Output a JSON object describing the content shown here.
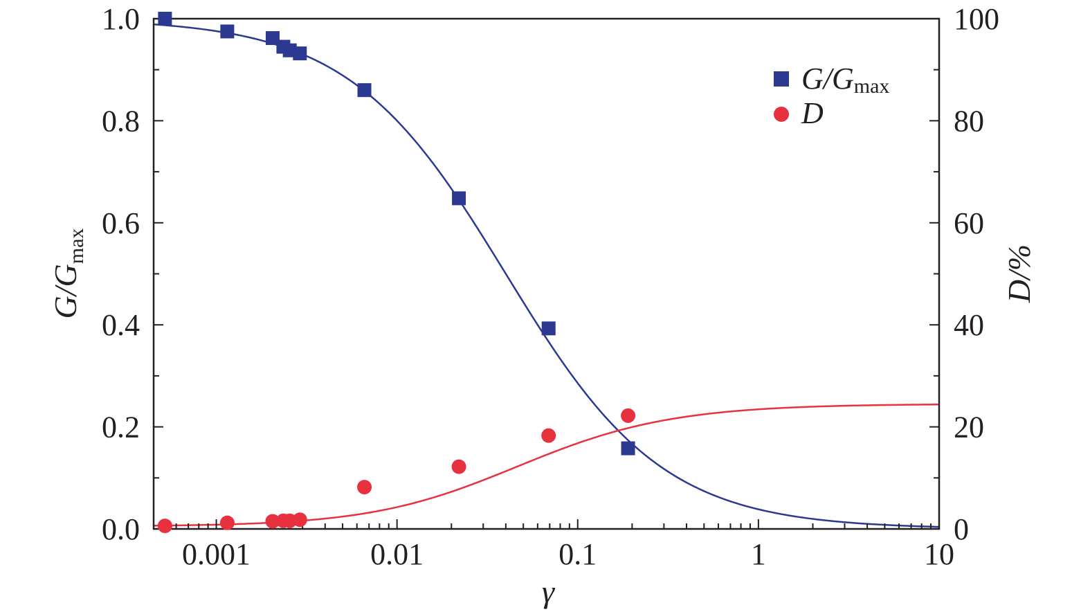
{
  "chart_data": {
    "type": "scatter",
    "xlabel": "γ",
    "x_scale": "log",
    "xlim": [
      0.00045,
      10
    ],
    "x_ticks": [
      "0.001",
      "0.01",
      "0.1",
      "1",
      "10"
    ],
    "x_tick_values": [
      0.001,
      0.01,
      0.1,
      1,
      10
    ],
    "y_left": {
      "label_main": "G/G",
      "label_sub": "max",
      "ylim": [
        0,
        1.0
      ],
      "ticks": [
        "0.0",
        "0.2",
        "0.4",
        "0.6",
        "0.8",
        "1.0"
      ],
      "tick_values": [
        0,
        0.2,
        0.4,
        0.6,
        0.8,
        1.0
      ]
    },
    "y_right": {
      "label": "D/%",
      "ylim": [
        0,
        100
      ],
      "ticks": [
        "0",
        "20",
        "40",
        "60",
        "80",
        "100"
      ],
      "tick_values": [
        0,
        20,
        40,
        60,
        80,
        100
      ]
    },
    "grid": false,
    "legend_position": "top-right",
    "series": [
      {
        "name": "G/G",
        "name_sub": "max",
        "axis": "left",
        "marker": "square",
        "color": "#2b3990",
        "x": [
          0.00052,
          0.00115,
          0.00205,
          0.00235,
          0.00255,
          0.0029,
          0.0066,
          0.022,
          0.069,
          0.19
        ],
        "y": [
          1.0,
          0.975,
          0.962,
          0.945,
          0.938,
          0.932,
          0.86,
          0.648,
          0.393,
          0.158
        ],
        "fit": {
          "model": "hardin-drnevich",
          "gamma_ref": 0.04
        }
      },
      {
        "name": "D",
        "axis": "right",
        "marker": "circle",
        "color": "#e8313f",
        "x": [
          0.00052,
          0.00115,
          0.00205,
          0.00235,
          0.00255,
          0.0029,
          0.0066,
          0.022,
          0.069,
          0.19
        ],
        "y": [
          0.6,
          1.2,
          1.5,
          1.6,
          1.6,
          1.8,
          8.2,
          12.2,
          18.3,
          22.2
        ],
        "fit": {
          "model": "dmax-exponent",
          "d_min": 0.5,
          "d_max": 24.5,
          "gamma_ref": 0.04
        }
      }
    ]
  }
}
